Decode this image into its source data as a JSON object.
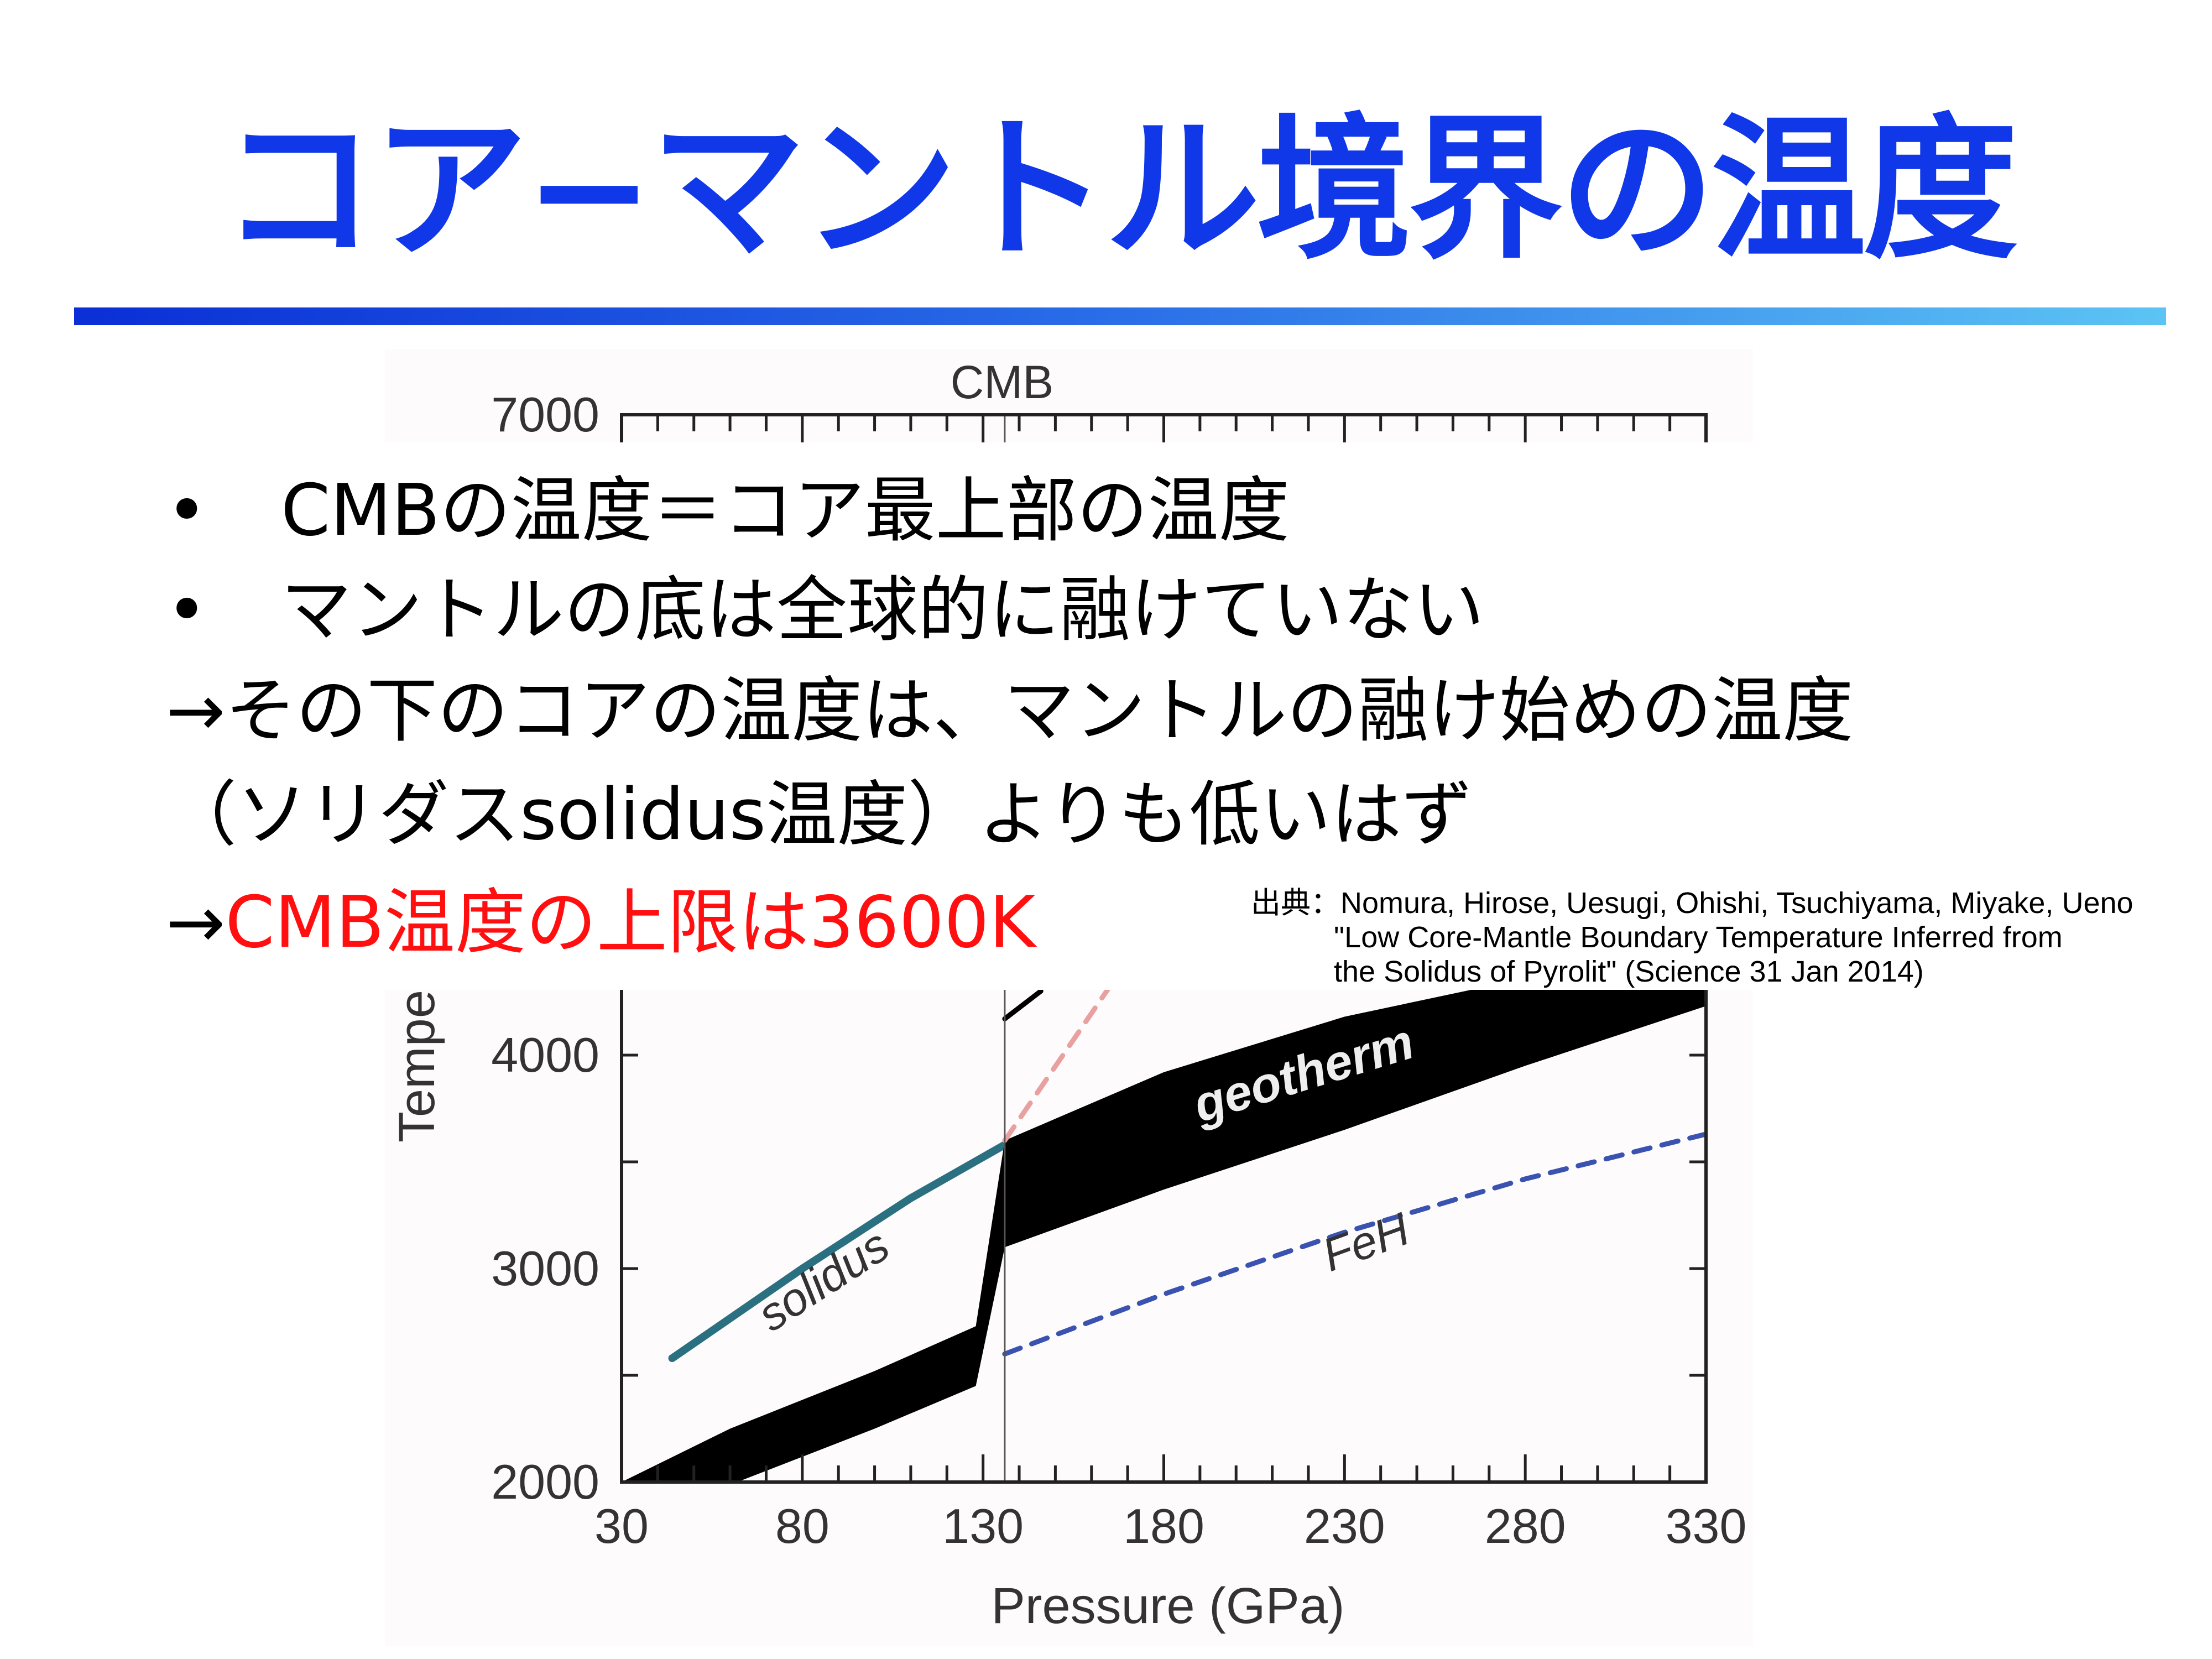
{
  "slide": {
    "title": "コア−マントル境界の温度",
    "bullets": [
      {
        "marker": "•",
        "text": "CMBの温度＝コア最上部の温度"
      },
      {
        "marker": "•",
        "text": "マントルの底は全球的に融けていない"
      }
    ],
    "lines": [
      "→その下のコアの温度は、マントルの融け始めの温度",
      "（ソリダスsolidus温度）よりも低いはず"
    ],
    "conclusion": {
      "arrow": "→",
      "text": "CMB温度の上限は3600K"
    },
    "citation": {
      "label": "出典：",
      "authors": "Nomura, Hirose, Uesugi, Ohishi, Tsuchiyama, Miyake, Ueno",
      "title_line1": "\"Low Core-Mantle Boundary Temperature Inferred from",
      "title_line2": "the Solidus of Pyrolit\" (Science  31 Jan 2014)"
    },
    "colors": {
      "title": "#1038e8",
      "conclusion": "#ff0f0f",
      "solidus": "#2a7080",
      "feh": "#3a52b0",
      "red_dashed": "#e8a0a0"
    }
  },
  "chart_data": {
    "type": "line",
    "xlabel": "Pressure (GPa)",
    "ylabel": "Tempe",
    "xlim": [
      30,
      330
    ],
    "ylim": [
      2000,
      7000
    ],
    "xticks": [
      30,
      80,
      130,
      180,
      230,
      280,
      330
    ],
    "yticks_visible": [
      2000,
      3000,
      4000,
      7000
    ],
    "annotation_top": "CMB",
    "cmb_pressure": 136,
    "series": [
      {
        "name": "solidus",
        "style": "solid",
        "color": "#2a7080",
        "points": [
          [
            44,
            2580
          ],
          [
            80,
            3000
          ],
          [
            110,
            3330
          ],
          [
            136,
            3580
          ]
        ]
      },
      {
        "name": "FeH",
        "style": "dashed",
        "color": "#3a52b0",
        "points": [
          [
            136,
            2600
          ],
          [
            180,
            2880
          ],
          [
            230,
            3170
          ],
          [
            280,
            3420
          ],
          [
            330,
            3630
          ]
        ]
      },
      {
        "name": "geotherm",
        "style": "band",
        "color": "#000000",
        "upper": [
          [
            30,
            2000
          ],
          [
            60,
            2250
          ],
          [
            100,
            2520
          ],
          [
            128,
            2730
          ],
          [
            136,
            3600
          ],
          [
            180,
            3920
          ],
          [
            230,
            4180
          ],
          [
            280,
            4360
          ],
          [
            330,
            4500
          ]
        ],
        "lower": [
          [
            62,
            2000
          ],
          [
            100,
            2250
          ],
          [
            128,
            2450
          ],
          [
            136,
            3100
          ],
          [
            180,
            3370
          ],
          [
            230,
            3650
          ],
          [
            280,
            3950
          ],
          [
            330,
            4230
          ]
        ]
      },
      {
        "style": "dashed",
        "color": "#e8a0a0",
        "points": [
          [
            136,
            3600
          ],
          [
            165,
            4320
          ]
        ]
      },
      {
        "style": "solid",
        "color": "#000000",
        "points": [
          [
            136,
            4170
          ],
          [
            146,
            4300
          ]
        ]
      }
    ]
  }
}
